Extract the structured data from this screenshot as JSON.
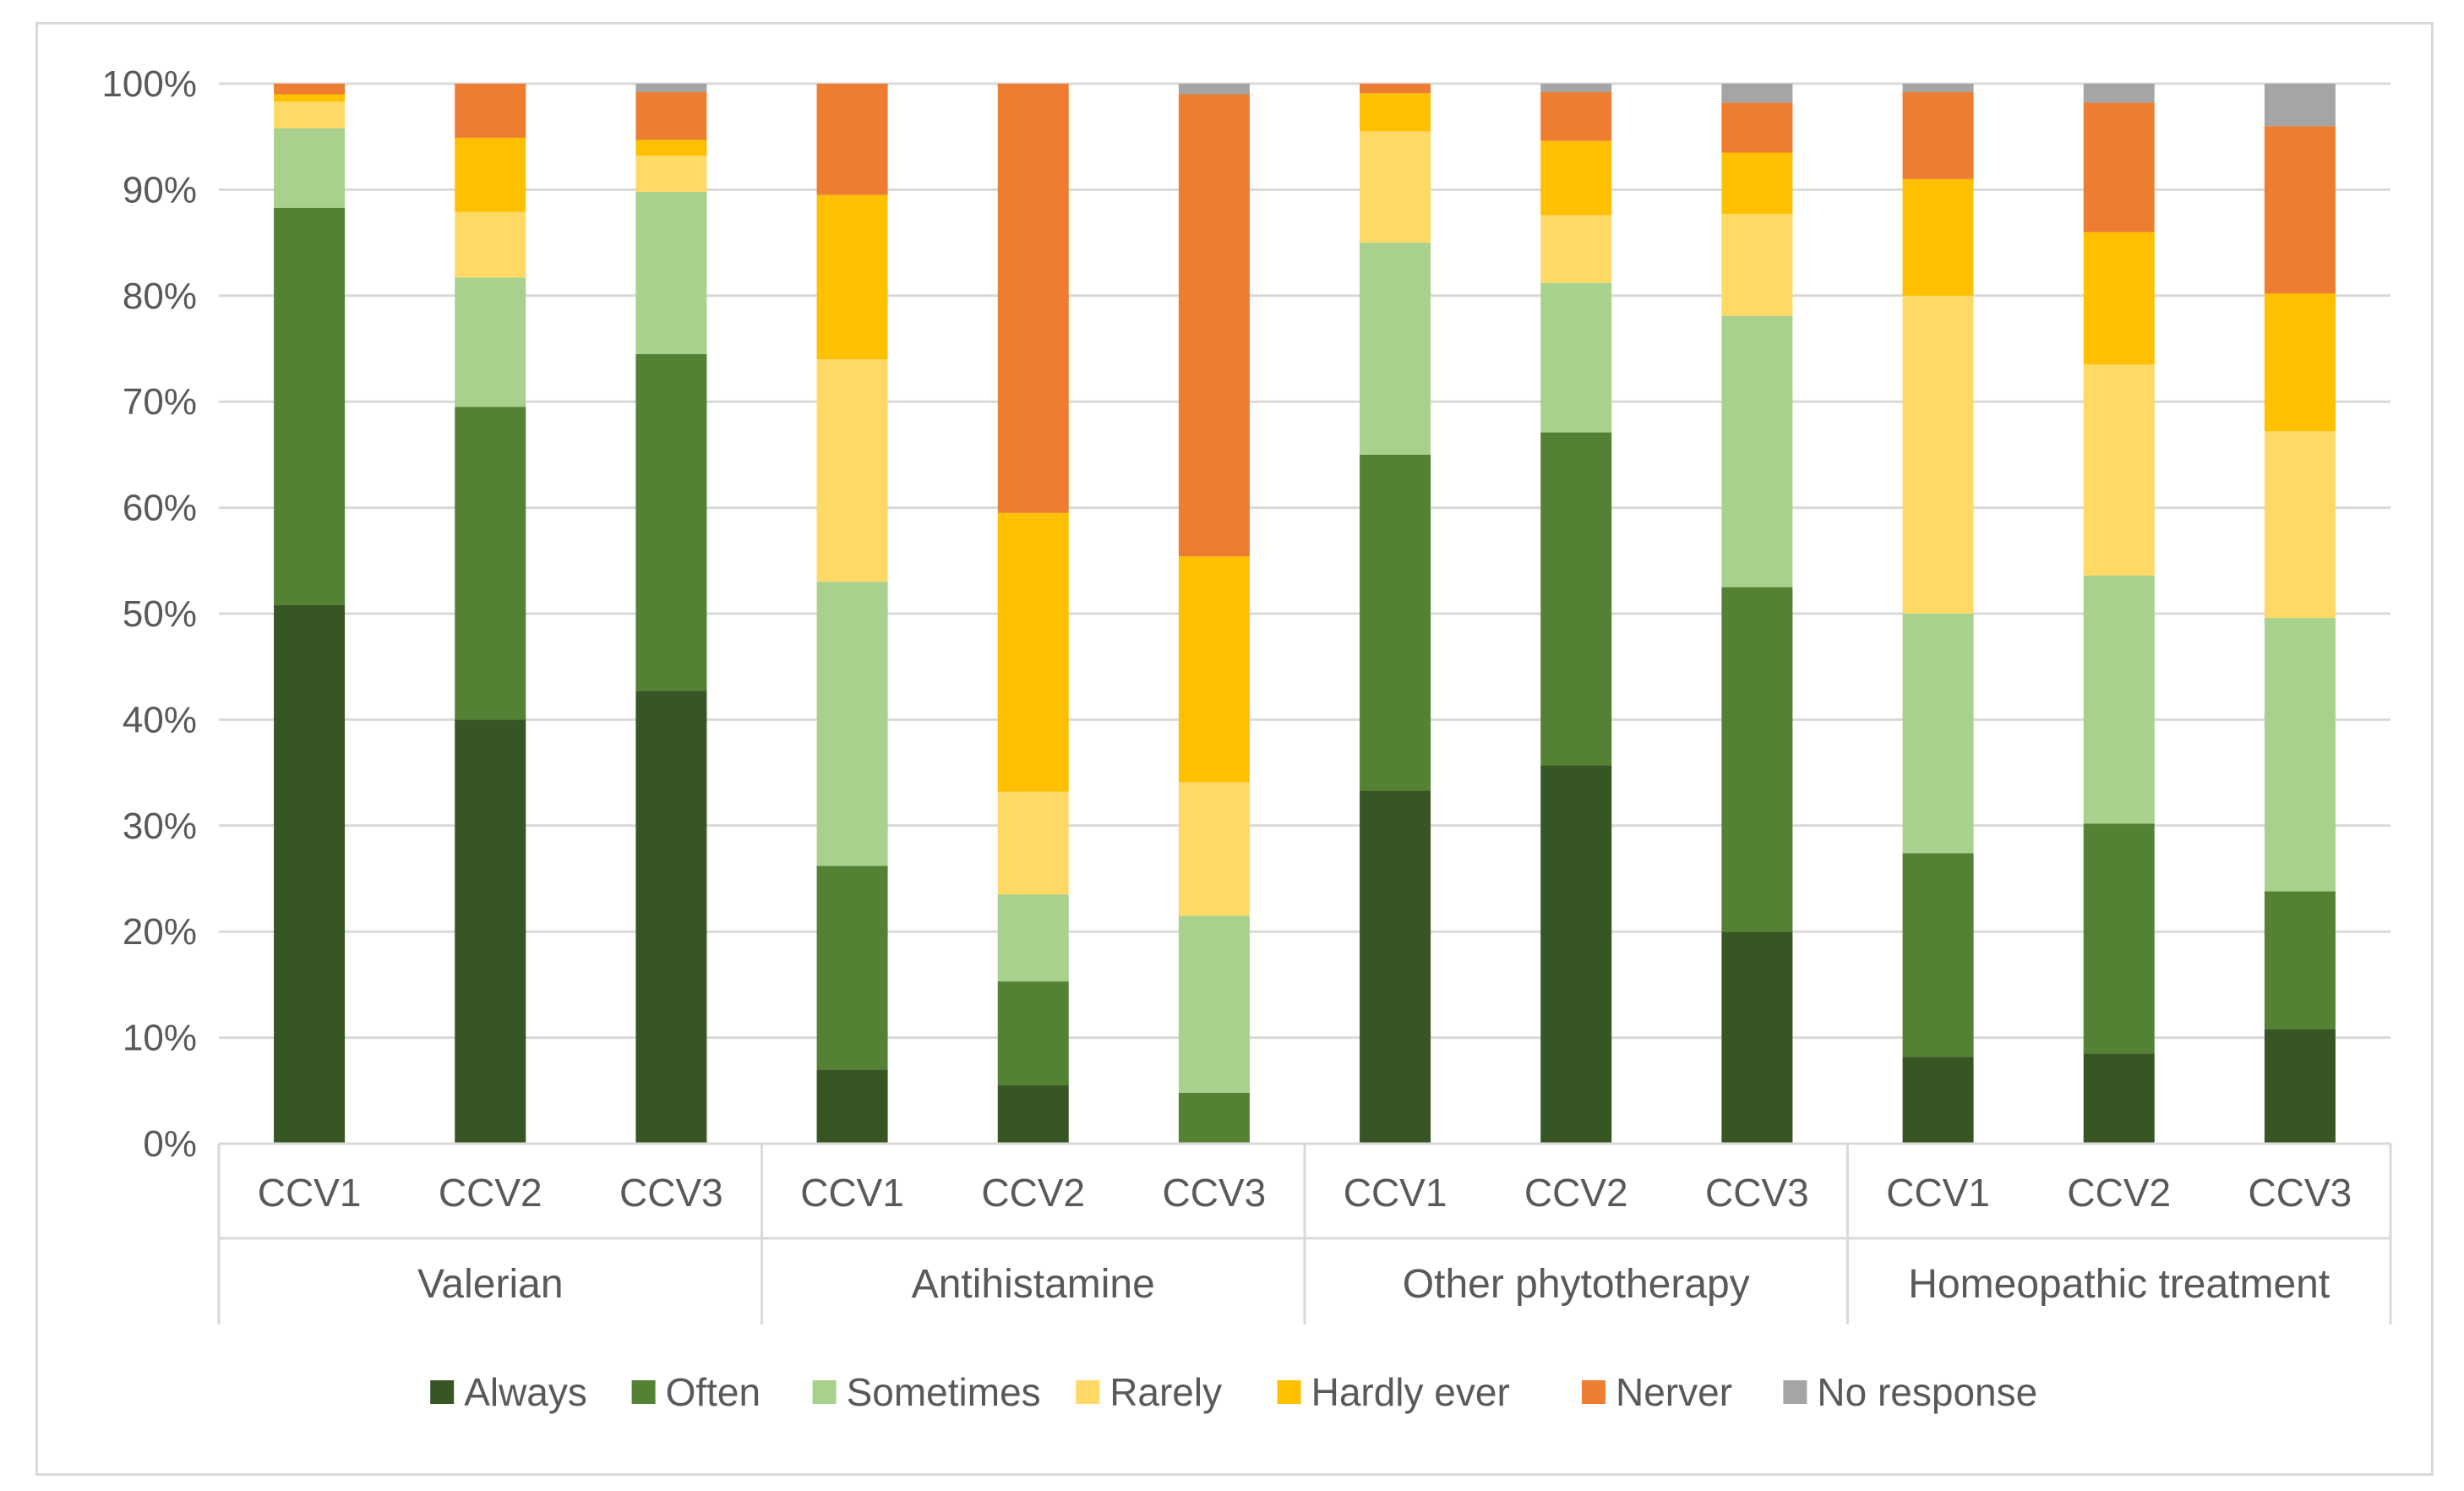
{
  "chart_data": {
    "type": "bar",
    "stacked": true,
    "percent": true,
    "title": "",
    "xlabel": "",
    "ylabel": "",
    "ylim": [
      0,
      100
    ],
    "yticks": [
      "0%",
      "10%",
      "20%",
      "30%",
      "40%",
      "50%",
      "60%",
      "70%",
      "80%",
      "90%",
      "100%"
    ],
    "groups": [
      "Valerian",
      "Antihistamine",
      "Other phytotherapy",
      "Homeopathic treatment"
    ],
    "categories": [
      "CCV1",
      "CCV2",
      "CCV3",
      "CCV1",
      "CCV2",
      "CCV3",
      "CCV1",
      "CCV2",
      "CCV3",
      "CCV1",
      "CCV2",
      "CCV3"
    ],
    "legend_position": "bottom",
    "series": [
      {
        "name": "Always",
        "color": "#375623",
        "values": [
          50.8,
          40.0,
          42.7,
          7.0,
          5.5,
          0.0,
          33.3,
          35.7,
          20.0,
          8.2,
          8.5,
          10.8
        ]
      },
      {
        "name": "Often",
        "color": "#548235",
        "values": [
          37.5,
          29.5,
          31.8,
          19.2,
          9.8,
          4.8,
          31.7,
          31.4,
          32.5,
          19.2,
          21.7,
          13.0
        ]
      },
      {
        "name": "Sometimes",
        "color": "#a9d18e",
        "values": [
          7.5,
          12.2,
          15.3,
          26.8,
          8.2,
          16.7,
          20.0,
          14.1,
          25.6,
          22.6,
          23.4,
          25.8
        ]
      },
      {
        "name": "Rarely",
        "color": "#ffd966",
        "values": [
          2.5,
          6.2,
          3.4,
          21.0,
          9.7,
          12.6,
          10.5,
          6.4,
          9.6,
          30.0,
          19.9,
          17.6
        ]
      },
      {
        "name": "Hardly ever",
        "color": "#ffc000",
        "values": [
          0.7,
          7.0,
          1.5,
          15.5,
          26.3,
          21.3,
          3.6,
          7.0,
          5.8,
          11.0,
          12.5,
          13.0
        ]
      },
      {
        "name": "Nerver",
        "color": "#ed7d31",
        "values": [
          1.0,
          5.1,
          4.5,
          10.5,
          40.5,
          43.6,
          0.9,
          4.6,
          4.7,
          8.2,
          12.2,
          15.8
        ]
      },
      {
        "name": "No response",
        "color": "#a5a5a5",
        "values": [
          0.0,
          0.0,
          0.8,
          0.0,
          0.0,
          1.0,
          0.0,
          0.8,
          1.8,
          0.8,
          1.8,
          4.0
        ]
      }
    ]
  }
}
